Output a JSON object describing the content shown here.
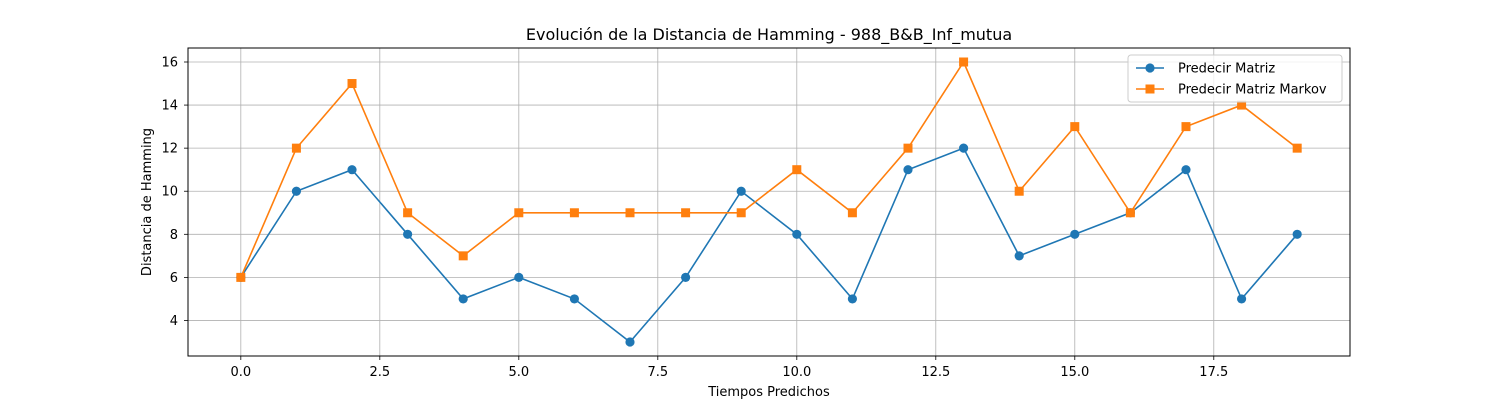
{
  "chart_data": {
    "type": "line",
    "title": "Evolución de la Distancia de Hamming - 988_B&B_Inf_mutua",
    "xlabel": "Tiempos Predichos",
    "ylabel": "Distancia de Hamming",
    "xlim": [
      -0.95,
      19.95
    ],
    "ylim": [
      2.35,
      16.65
    ],
    "xticks": [
      0.0,
      2.5,
      5.0,
      7.5,
      10.0,
      12.5,
      15.0,
      17.5
    ],
    "xtick_labels": [
      "0.0",
      "2.5",
      "5.0",
      "7.5",
      "10.0",
      "12.5",
      "15.0",
      "17.5"
    ],
    "yticks": [
      4,
      6,
      8,
      10,
      12,
      14,
      16
    ],
    "ytick_labels": [
      "4",
      "6",
      "8",
      "10",
      "12",
      "14",
      "16"
    ],
    "grid": true,
    "legend_position": "top-right",
    "x": [
      0,
      1,
      2,
      3,
      4,
      5,
      6,
      7,
      8,
      9,
      10,
      11,
      12,
      13,
      14,
      15,
      16,
      17,
      18,
      19
    ],
    "series": [
      {
        "name": "Predecir Matriz",
        "color": "#1f77b4",
        "marker": "circle",
        "values": [
          6,
          10,
          11,
          8,
          5,
          6,
          5,
          3,
          6,
          10,
          8,
          5,
          11,
          12,
          7,
          8,
          9,
          11,
          5,
          8
        ]
      },
      {
        "name": "Predecir Matriz Markov",
        "color": "#ff7f0e",
        "marker": "square",
        "values": [
          6,
          12,
          15,
          9,
          7,
          9,
          9,
          9,
          9,
          9,
          11,
          9,
          12,
          16,
          10,
          13,
          9,
          13,
          14,
          12
        ]
      }
    ]
  }
}
